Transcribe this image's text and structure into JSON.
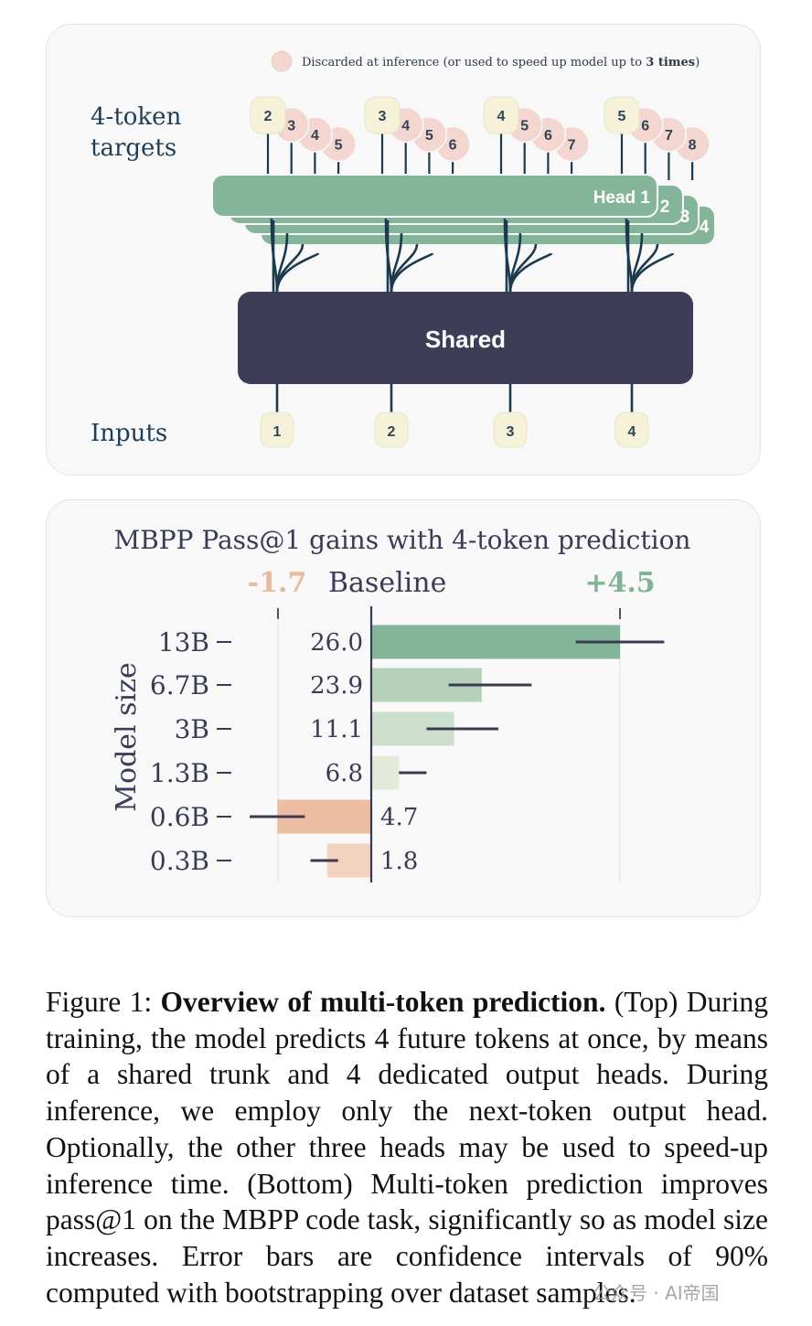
{
  "top_diagram": {
    "legend_text": "Discarded at inference (or used to speed up model up to ",
    "legend_bold": "3 times",
    "legend_close": ")",
    "targets_label_line1": "4-token",
    "targets_label_line2": "targets",
    "inputs_label": "Inputs",
    "shared_label": "Shared",
    "head_labels": [
      "Head 1",
      "2",
      "3",
      "4"
    ],
    "inputs": [
      "1",
      "2",
      "3",
      "4"
    ],
    "target_groups": [
      [
        "2",
        "3",
        "4",
        "5"
      ],
      [
        "3",
        "4",
        "5",
        "6"
      ],
      [
        "4",
        "5",
        "6",
        "7"
      ],
      [
        "5",
        "6",
        "7",
        "8"
      ]
    ],
    "colors": {
      "head": "#84b59a",
      "shared": "#3e3d57",
      "token": "#f6f1d9",
      "discarded": "#f3d6cf",
      "line": "#1c3a4e"
    }
  },
  "chart_title": "MBPP Pass@1  gains with 4-token prediction",
  "chart_data": {
    "type": "bar",
    "title": "MBPP Pass@1  gains with 4-token prediction",
    "ylabel": "Model size",
    "baseline_label": "Baseline",
    "min_label": "-1.7",
    "max_label": "+4.5",
    "categories": [
      "13B",
      "6.7B",
      "3B",
      "1.3B",
      "0.6B",
      "0.3B"
    ],
    "baseline": [
      26.0,
      23.9,
      11.1,
      6.8,
      4.7,
      1.8
    ],
    "baseline_labels": [
      "26.0",
      "23.9",
      "11.1",
      "6.8",
      "4.7",
      "1.8"
    ],
    "gain": [
      4.5,
      2.0,
      1.5,
      0.5,
      -1.7,
      -0.8
    ],
    "error_low": [
      3.7,
      1.4,
      1.0,
      0.5,
      -2.2,
      -1.1
    ],
    "error_high": [
      5.3,
      2.9,
      2.3,
      1.0,
      -1.2,
      -0.6
    ],
    "xlim": [
      -2.2,
      5.6
    ],
    "bar_colors": [
      "#82b59a",
      "#b6d1b9",
      "#ccdfcc",
      "#e4ead8",
      "#ecbda1",
      "#f1d3c0"
    ]
  },
  "caption": {
    "label": "Figure 1: ",
    "title": "Overview of multi-token prediction.",
    "body": " (Top) During training, the model predicts 4 future tokens at once, by means of a shared trunk and 4 dedicated output heads. During inference, we employ only the next-token output head. Optionally, the other three heads may be used to speed-up inference time. (Bottom) Multi-token prediction improves pass@1 on the MBPP code task, significantly so as model size increases. Error bars are confidence intervals of 90% computed with bootstrapping over dataset samples."
  },
  "watermark": "公众号 · AI帝国"
}
